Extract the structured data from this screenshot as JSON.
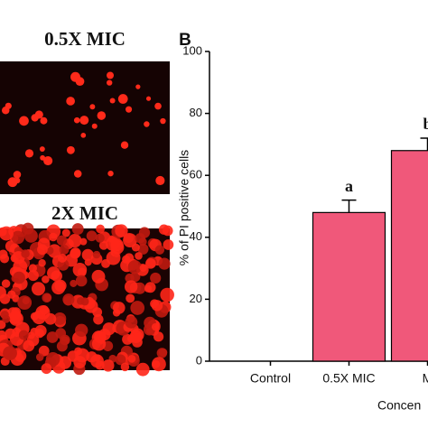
{
  "images": [
    {
      "label": "0.5X MIC"
    },
    {
      "label": "2X MIC"
    }
  ],
  "chart_data": {
    "type": "bar",
    "panel_label": "B",
    "y_label": "% of PI positive cells",
    "x_label": "Concen",
    "categories": [
      "Control",
      "0.5X MIC",
      "M"
    ],
    "values": [
      0,
      48,
      68
    ],
    "errors": [
      null,
      4,
      4
    ],
    "bar_labels": [
      null,
      "a",
      "b"
    ],
    "color": "#f0587a",
    "ylim": [
      0,
      100
    ],
    "yticks": [
      0,
      20,
      40,
      60,
      80,
      100
    ]
  }
}
